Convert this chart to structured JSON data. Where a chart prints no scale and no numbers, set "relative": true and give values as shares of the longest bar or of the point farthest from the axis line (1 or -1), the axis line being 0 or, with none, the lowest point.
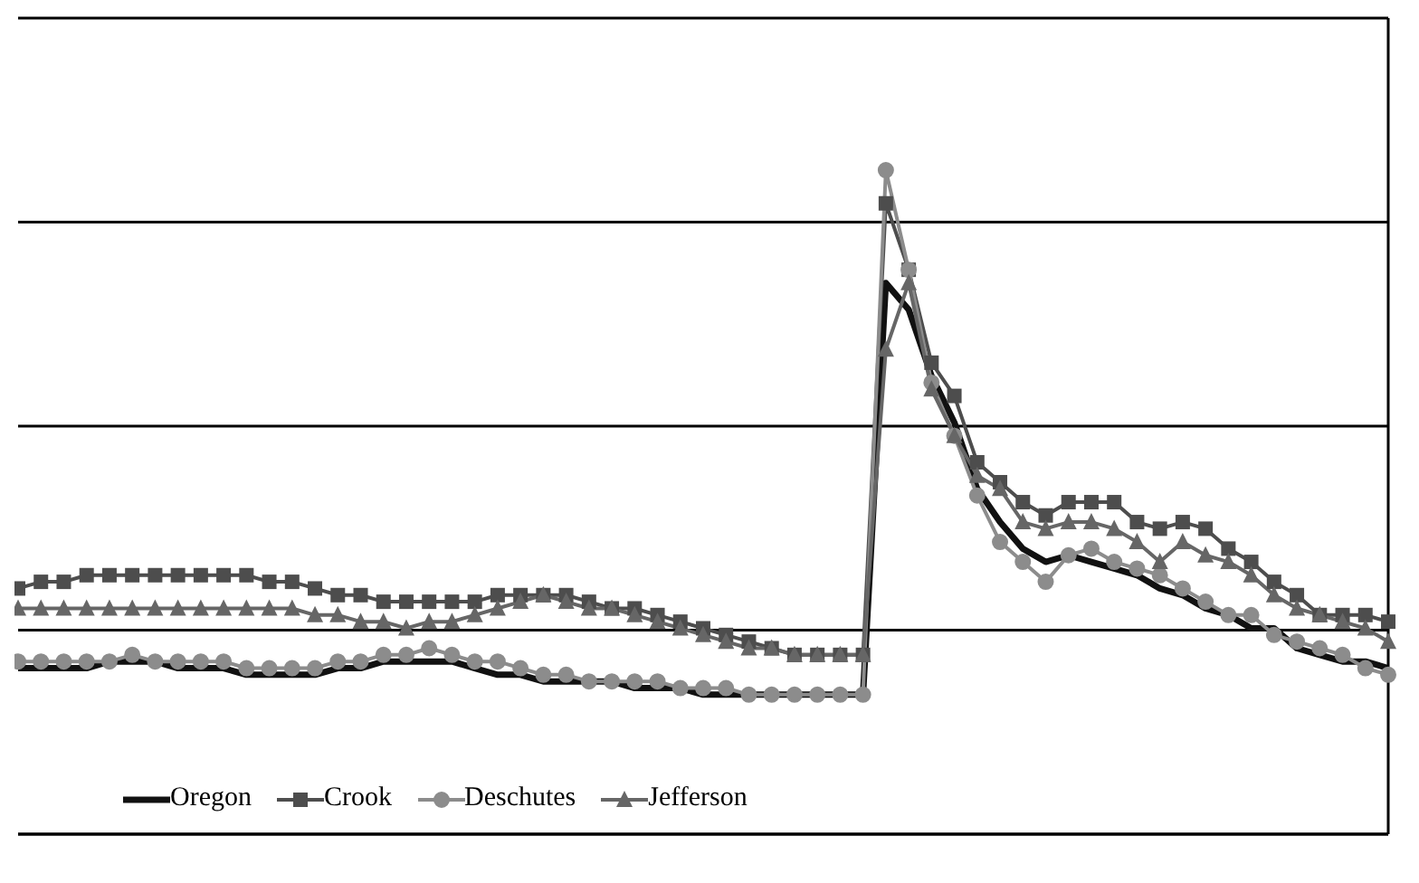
{
  "chart_data": {
    "type": "line",
    "relative": true,
    "grid": "y",
    "legend": "bottom left",
    "categories": [
      null,
      null,
      null,
      null,
      null,
      null,
      null,
      null,
      null,
      null,
      null,
      null,
      null,
      null,
      null,
      null,
      null,
      null,
      null,
      null,
      null,
      null,
      null,
      null,
      null,
      null,
      null,
      null,
      null,
      null,
      null,
      null,
      null,
      null,
      null,
      null,
      null,
      null,
      null,
      null,
      null,
      null,
      null,
      null,
      null,
      null,
      null,
      null,
      null,
      null,
      null,
      null,
      null,
      null,
      null,
      null,
      null,
      null,
      null,
      null,
      null
    ],
    "series": [
      {
        "name": "Oregon",
        "color": "#111111",
        "marker": "none",
        "values": [
          0.25,
          0.25,
          0.25,
          0.25,
          0.26,
          0.26,
          0.26,
          0.25,
          0.25,
          0.25,
          0.24,
          0.24,
          0.24,
          0.24,
          0.25,
          0.25,
          0.26,
          0.26,
          0.26,
          0.26,
          0.25,
          0.24,
          0.24,
          0.23,
          0.23,
          0.23,
          0.23,
          0.22,
          0.22,
          0.22,
          0.21,
          0.21,
          0.21,
          0.21,
          0.21,
          0.21,
          0.21,
          0.21,
          0.83,
          0.79,
          0.69,
          0.62,
          0.52,
          0.47,
          0.43,
          0.41,
          0.42,
          0.41,
          0.4,
          0.39,
          0.37,
          0.36,
          0.34,
          0.33,
          0.31,
          0.31,
          0.28,
          0.27,
          0.26,
          0.26,
          0.25
        ]
      },
      {
        "name": "Crook",
        "color": "#4d4d4d",
        "marker": "square",
        "values": [
          0.37,
          0.38,
          0.38,
          0.39,
          0.39,
          0.39,
          0.39,
          0.39,
          0.39,
          0.39,
          0.39,
          0.38,
          0.38,
          0.37,
          0.36,
          0.36,
          0.35,
          0.35,
          0.35,
          0.35,
          0.35,
          0.36,
          0.36,
          0.36,
          0.36,
          0.35,
          0.34,
          0.34,
          0.33,
          0.32,
          0.31,
          0.3,
          0.29,
          0.28,
          0.27,
          0.27,
          0.27,
          0.27,
          0.95,
          0.85,
          0.71,
          0.66,
          0.56,
          0.53,
          0.5,
          0.48,
          0.5,
          0.5,
          0.5,
          0.47,
          0.46,
          0.47,
          0.46,
          0.43,
          0.41,
          0.38,
          0.36,
          0.33,
          0.33,
          0.33,
          0.32
        ]
      },
      {
        "name": "Deschutes",
        "color": "#8c8c8c",
        "marker": "circle",
        "values": [
          0.26,
          0.26,
          0.26,
          0.26,
          0.26,
          0.27,
          0.26,
          0.26,
          0.26,
          0.26,
          0.25,
          0.25,
          0.25,
          0.25,
          0.26,
          0.26,
          0.27,
          0.27,
          0.28,
          0.27,
          0.26,
          0.26,
          0.25,
          0.24,
          0.24,
          0.23,
          0.23,
          0.23,
          0.23,
          0.22,
          0.22,
          0.22,
          0.21,
          0.21,
          0.21,
          0.21,
          0.21,
          0.21,
          1,
          0.85,
          0.68,
          0.6,
          0.51,
          0.44,
          0.41,
          0.38,
          0.42,
          0.43,
          0.41,
          0.4,
          0.39,
          0.37,
          0.35,
          0.33,
          0.33,
          0.3,
          0.29,
          0.28,
          0.27,
          0.25,
          0.24
        ]
      },
      {
        "name": "Jefferson",
        "color": "#666666",
        "marker": "triangle",
        "values": [
          0.34,
          0.34,
          0.34,
          0.34,
          0.34,
          0.34,
          0.34,
          0.34,
          0.34,
          0.34,
          0.34,
          0.34,
          0.34,
          0.33,
          0.33,
          0.32,
          0.32,
          0.31,
          0.32,
          0.32,
          0.33,
          0.34,
          0.35,
          0.36,
          0.35,
          0.34,
          0.34,
          0.33,
          0.32,
          0.31,
          0.3,
          0.29,
          0.28,
          0.28,
          0.27,
          0.27,
          0.27,
          0.27,
          0.73,
          0.83,
          0.67,
          0.6,
          0.54,
          0.52,
          0.47,
          0.46,
          0.47,
          0.47,
          0.46,
          0.44,
          0.41,
          0.44,
          0.42,
          0.41,
          0.39,
          0.36,
          0.34,
          0.33,
          0.32,
          0.31,
          0.29
        ]
      }
    ]
  }
}
